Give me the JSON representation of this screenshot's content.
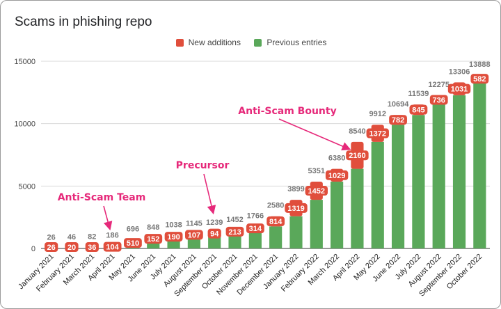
{
  "chart_data": {
    "type": "bar",
    "stacked": true,
    "title": "Scams in phishing repo",
    "categories": [
      "January 2021",
      "February 2021",
      "March 2021",
      "April 2021",
      "May 2021",
      "June 2021",
      "July 2021",
      "August 2021",
      "September 2021",
      "October 2021",
      "November 2021",
      "December 2021",
      "January 2022",
      "February 2022",
      "March 2022",
      "April 2022",
      "May 2022",
      "June 2022",
      "July 2022",
      "August 2022",
      "September 2022",
      "October 2022"
    ],
    "series": [
      {
        "name": "New additions",
        "color": "#e04e3c",
        "values": [
          26,
          20,
          36,
          104,
          510,
          152,
          190,
          107,
          94,
          213,
          314,
          814,
          1319,
          1452,
          1029,
          2160,
          1372,
          782,
          845,
          736,
          1031,
          582
        ]
      },
      {
        "name": "Previous entries",
        "color": "#5aa85a",
        "values": [
          0,
          26,
          46,
          82,
          186,
          696,
          848,
          1038,
          1145,
          1239,
          1452,
          1766,
          2580,
          3899,
          5351,
          6380,
          8540,
          9912,
          10694,
          11539,
          12275,
          13306
        ]
      }
    ],
    "totals": [
      26,
      46,
      82,
      186,
      696,
      848,
      1038,
      1145,
      1239,
      1452,
      1766,
      2580,
      3899,
      5351,
      6380,
      8540,
      9912,
      10694,
      11539,
      12275,
      13306,
      13888
    ],
    "ylim": [
      0,
      15000
    ],
    "yticks": [
      0,
      5000,
      10000,
      15000
    ],
    "legend_position": "top-center",
    "grid": true,
    "annotations": [
      {
        "text": "Anti-Scam Team",
        "category": "April 2021"
      },
      {
        "text": "Precursor",
        "category": "September 2021"
      },
      {
        "text": "Anti-Scam Bounty",
        "category": "April 2022"
      }
    ]
  }
}
